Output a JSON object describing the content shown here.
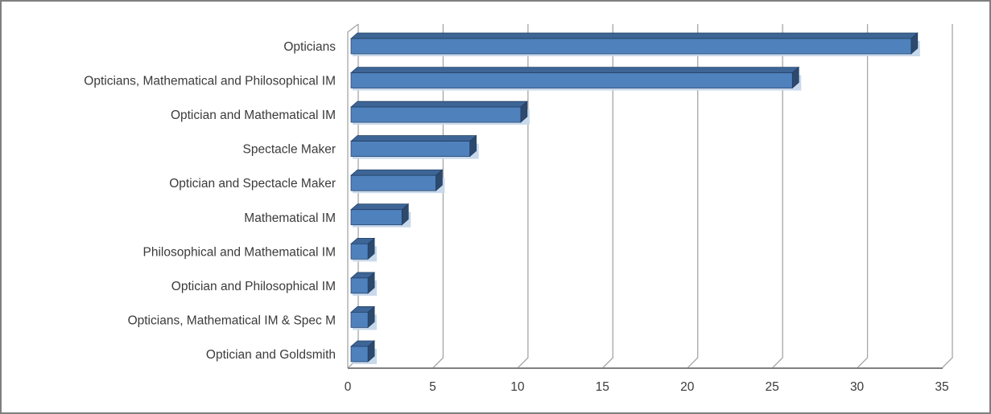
{
  "chart_data": {
    "type": "bar",
    "orientation": "horizontal",
    "style": "3d",
    "title": "",
    "xlabel": "",
    "ylabel": "",
    "categories": [
      "Opticians",
      "Opticians, Mathematical and Philosophical IM",
      "Optician and Mathematical IM",
      "Spectacle Maker",
      "Optician and Spectacle Maker",
      "Mathematical IM",
      "Philosophical and Mathematical IM",
      "Optician and Philosophical IM",
      "Opticians, Mathematical IM & Spec M",
      "Optician and Goldsmith"
    ],
    "values": [
      33,
      26,
      10,
      7,
      5,
      3,
      1,
      1,
      1,
      1
    ],
    "xlim": [
      0,
      35
    ],
    "xticks": [
      0,
      5,
      10,
      15,
      20,
      25,
      30,
      35
    ],
    "grid": true,
    "legend": false,
    "colors": {
      "bar_front": "#4F81BD",
      "bar_top": "#3D6596",
      "bar_side": "#2D4A6E",
      "bar_outline": "#1F3C61",
      "bar_glow": "#C9D9EC",
      "gridline": "#A6A6A6",
      "axis_line": "#808080",
      "text": "#3B3B3B",
      "background": "#FFFFFF",
      "frame_border": "#7F7F7F"
    }
  }
}
